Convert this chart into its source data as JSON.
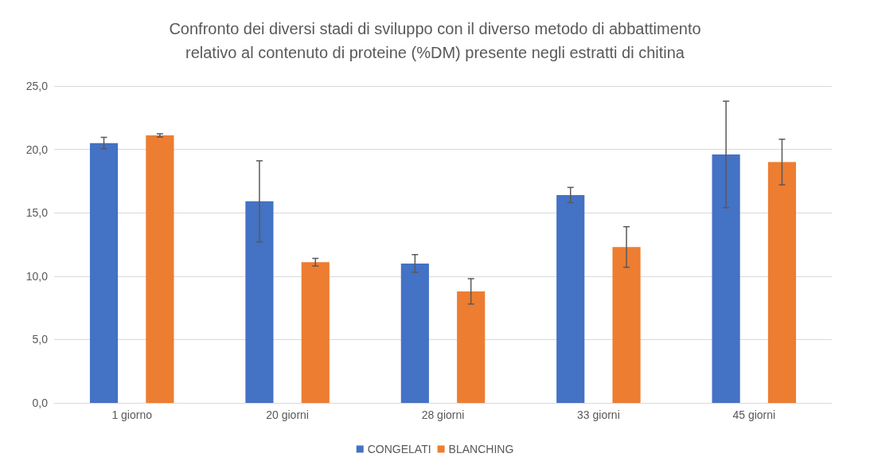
{
  "chart_data": {
    "type": "bar",
    "title": "Confronto dei diversi stadi di sviluppo con il diverso metodo di abbattimento\nrelativo al contenuto di proteine (%DM) presente negli estratti di chitina",
    "categories": [
      "1 giorno",
      "20 giorni",
      "28 giorni",
      "33 giorni",
      "45 giorni"
    ],
    "series": [
      {
        "name": "CONGELATI",
        "color": "#4472c4",
        "values": [
          20.5,
          15.9,
          11.0,
          16.4,
          19.6
        ],
        "errors": [
          0.45,
          3.2,
          0.7,
          0.6,
          4.2
        ]
      },
      {
        "name": "BLANCHING",
        "color": "#ed7d31",
        "values": [
          21.1,
          11.1,
          8.8,
          12.3,
          19.0
        ],
        "errors": [
          0.13,
          0.3,
          1.0,
          1.6,
          1.8
        ]
      }
    ],
    "ylim": [
      0,
      25
    ],
    "yticks": [
      {
        "value": 0,
        "label": "0,0"
      },
      {
        "value": 5,
        "label": "5,0"
      },
      {
        "value": 10,
        "label": "10,0"
      },
      {
        "value": 15,
        "label": "15,0"
      },
      {
        "value": 20,
        "label": "20,0"
      },
      {
        "value": 25,
        "label": "25,0"
      }
    ],
    "grid": "y",
    "legend": "bottom"
  }
}
